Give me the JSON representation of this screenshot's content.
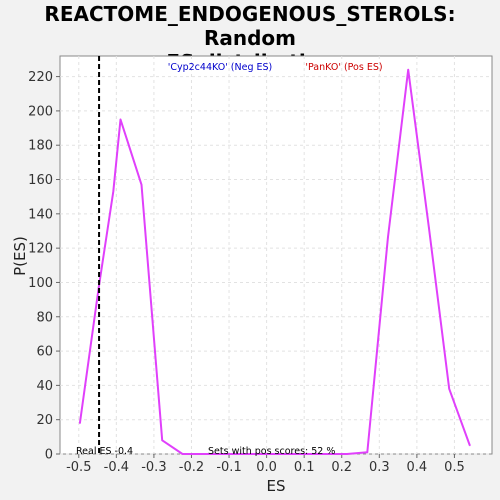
{
  "chart_data": {
    "type": "line",
    "title_line1": "REACTOME_ENDOGENOUS_STEROLS: Random",
    "title_line2": "ES distribution",
    "xlabel": "ES",
    "ylabel": "P(ES)",
    "xlim": [
      -0.55,
      0.6
    ],
    "ylim": [
      0,
      232
    ],
    "x_ticks": [
      -0.5,
      -0.4,
      -0.3,
      -0.2,
      -0.1,
      0.0,
      0.1,
      0.2,
      0.3,
      0.4,
      0.5
    ],
    "x_tick_labels": [
      "-0.5",
      "-0.4",
      "-0.3",
      "-0.2",
      "-0.1",
      "0.0",
      "0.1",
      "0.2",
      "0.3",
      "0.4",
      "0.5"
    ],
    "y_ticks": [
      0,
      20,
      40,
      60,
      80,
      100,
      120,
      140,
      160,
      180,
      200,
      220
    ],
    "y_tick_labels": [
      "0",
      "20",
      "40",
      "60",
      "80",
      "100",
      "120",
      "140",
      "160",
      "180",
      "200",
      "220"
    ],
    "grid": true,
    "series": [
      {
        "color": "#e040fb",
        "points": [
          [
            -0.497,
            18
          ],
          [
            -0.447,
            97
          ],
          [
            -0.408,
            153
          ],
          [
            -0.389,
            195
          ],
          [
            -0.333,
            157
          ],
          [
            -0.278,
            8
          ],
          [
            -0.224,
            0
          ],
          [
            -0.169,
            0
          ],
          [
            -0.114,
            0
          ],
          [
            -0.06,
            0
          ],
          [
            -0.005,
            0
          ],
          [
            0.05,
            0
          ],
          [
            0.104,
            0
          ],
          [
            0.159,
            0
          ],
          [
            0.214,
            0
          ],
          [
            0.268,
            1
          ],
          [
            0.323,
            126
          ],
          [
            0.377,
            224
          ],
          [
            0.432,
            132
          ],
          [
            0.486,
            38
          ],
          [
            0.541,
            5
          ]
        ]
      }
    ],
    "real_es_line": {
      "x": -0.446,
      "color": "#000000"
    },
    "legend": [
      {
        "label": "'Cyp2c44KO' (Neg ES)",
        "color": "#0000cc"
      },
      {
        "label": "'PanKO' (Pos ES)",
        "color": "#cc0000"
      }
    ],
    "annotations": {
      "real_es": "Real ES -0.4",
      "pos_scores": "Sets with pos scores: 52 %"
    }
  }
}
